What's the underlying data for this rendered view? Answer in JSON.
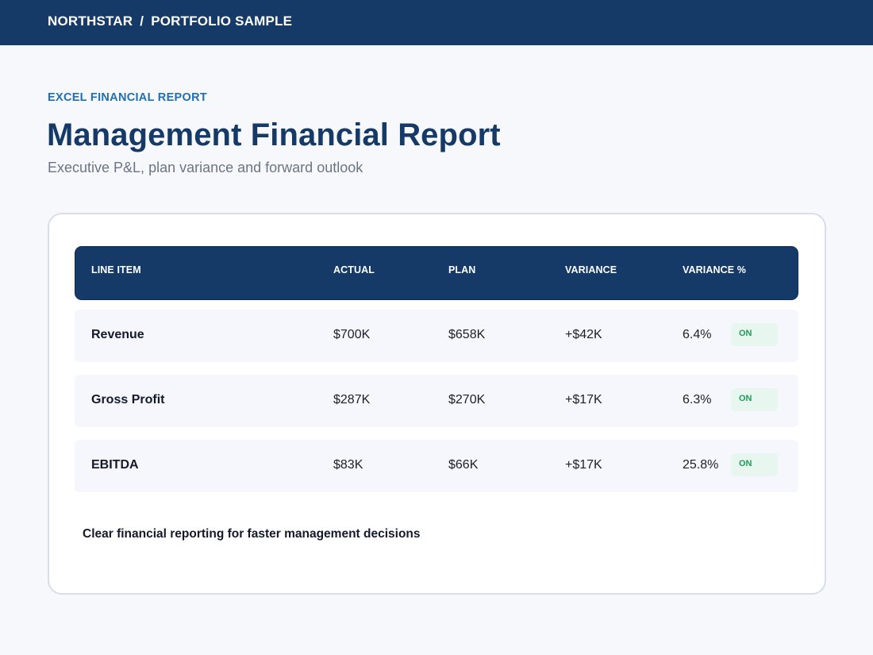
{
  "header": {
    "brand": "NORTHSTAR",
    "separator": "/",
    "section": "PORTFOLIO SAMPLE"
  },
  "hero": {
    "eyebrow": "EXCEL FINANCIAL REPORT",
    "title": "Management Financial Report",
    "subtitle": "Executive P&L, plan variance and forward outlook"
  },
  "table": {
    "columns": [
      "LINE ITEM",
      "ACTUAL",
      "PLAN",
      "VARIANCE",
      "VARIANCE %"
    ],
    "rows": [
      {
        "line_item": "Revenue",
        "actual": "$700K",
        "plan": "$658K",
        "variance": "+$42K",
        "variance_pct": "6.4%",
        "status": "ON"
      },
      {
        "line_item": "Gross Profit",
        "actual": "$287K",
        "plan": "$270K",
        "variance": "+$17K",
        "variance_pct": "6.3%",
        "status": "ON"
      },
      {
        "line_item": "EBITDA",
        "actual": "$83K",
        "plan": "$66K",
        "variance": "+$17K",
        "variance_pct": "25.8%",
        "status": "ON"
      }
    ]
  },
  "footer_note": "Clear financial reporting for faster management decisions",
  "colors": {
    "header_bg": "#163a68",
    "accent": "#1f6fb2",
    "status_on_text": "#1f9d57",
    "status_on_bg": "#e7f6ee"
  }
}
